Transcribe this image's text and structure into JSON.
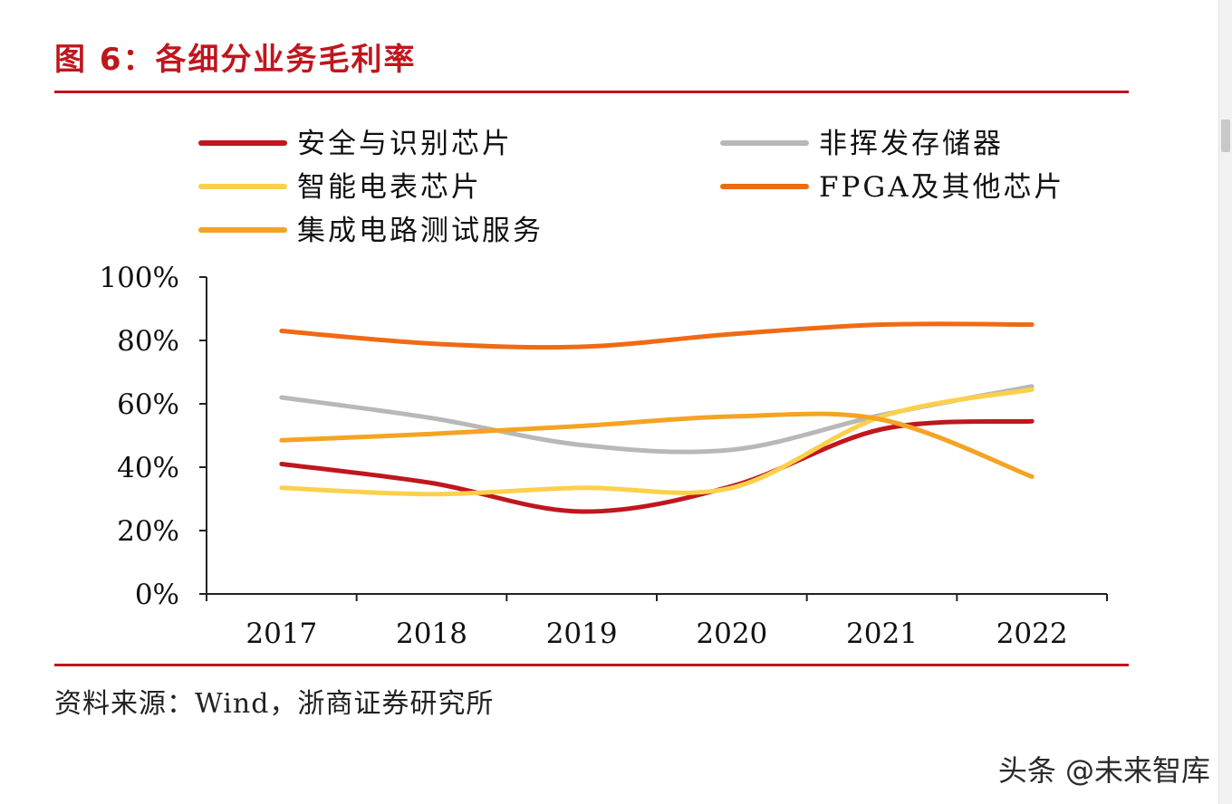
{
  "page": {
    "title": "图 6：各细分业务毛利率",
    "source": "资料来源：Wind，浙商证券研究所",
    "watermark": "头条 @未来智库"
  },
  "chart_data": {
    "type": "line",
    "title": "各细分业务毛利率",
    "xlabel": "",
    "ylabel": "",
    "categories": [
      "2017",
      "2018",
      "2019",
      "2020",
      "2021",
      "2022"
    ],
    "ylim": [
      0,
      100
    ],
    "yticks": [
      0,
      20,
      40,
      60,
      80,
      100
    ],
    "ytick_labels": [
      "0%",
      "20%",
      "40%",
      "60%",
      "80%",
      "100%"
    ],
    "legend_position": "top",
    "grid": false,
    "series": [
      {
        "name": "安全与识别芯片",
        "color": "#c0161e",
        "values": [
          41,
          35,
          26,
          34,
          52,
          54.5
        ]
      },
      {
        "name": "非挥发存储器",
        "color": "#b8b8b8",
        "values": [
          62,
          55.5,
          47,
          45.5,
          56.5,
          65.5
        ]
      },
      {
        "name": "智能电表芯片",
        "color": "#fcd04a",
        "values": [
          33.5,
          31.5,
          33.5,
          33.5,
          56,
          64.5
        ]
      },
      {
        "name": "FPGA及其他芯片",
        "color": "#f06a14",
        "values": [
          83,
          79,
          78,
          82,
          85,
          85
        ]
      },
      {
        "name": "集成电路测试服务",
        "color": "#f4a322",
        "values": [
          48.5,
          50.5,
          53,
          56,
          55,
          37
        ]
      }
    ]
  }
}
